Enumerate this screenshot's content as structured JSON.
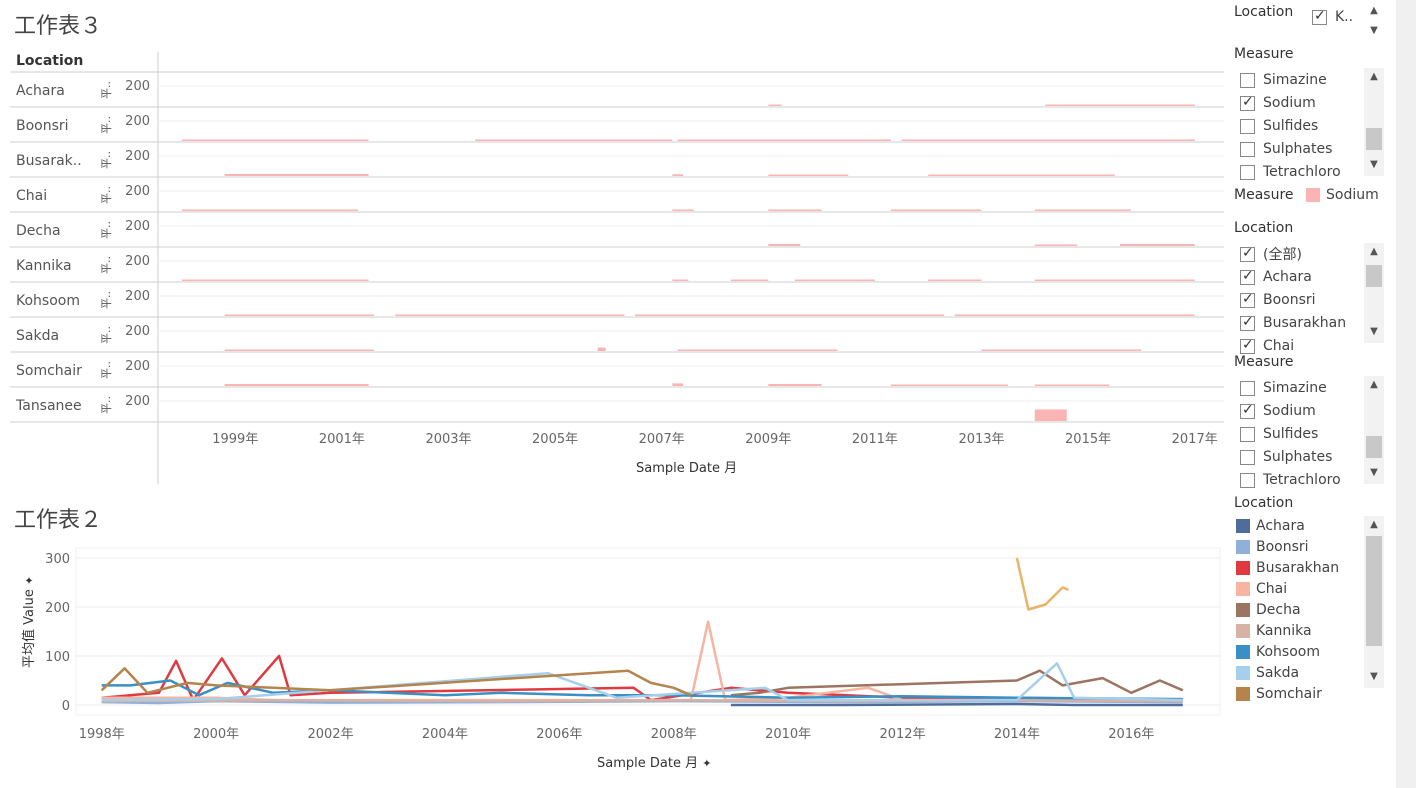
{
  "sheet3": {
    "title": "工作表３",
    "location_header": "Location",
    "rows": [
      "Achara",
      "Boonsri",
      "Busarak..",
      "Chai",
      "Decha",
      "Kannika",
      "Kohsoom",
      "Sakda",
      "Somchair",
      "Tansanee"
    ],
    "row_axis_label": "平..",
    "row_tick": "200",
    "x_ticks": [
      "1999年",
      "2001年",
      "2003年",
      "2005年",
      "2007年",
      "2009年",
      "2011年",
      "2013年",
      "2015年",
      "2017年"
    ],
    "x_title": "Sample Date 月",
    "fill_color": "#fbb4b4"
  },
  "sheet2": {
    "title": "工作表２",
    "y_title": "平均值 Value",
    "pin_icon": "pin-icon",
    "y_ticks": [
      "300",
      "200",
      "100",
      "0"
    ],
    "x_ticks": [
      "1998年",
      "2000年",
      "2002年",
      "2004年",
      "2006年",
      "2008年",
      "2010年",
      "2012年",
      "2014年",
      "2016年"
    ],
    "x_title": "Sample Date 月"
  },
  "right_panel": {
    "top_location": {
      "title": "Location",
      "item": "K..",
      "item2": "K..."
    },
    "measure_filter_1": {
      "title": "Measure",
      "items": [
        {
          "label": "Simazine",
          "checked": false
        },
        {
          "label": "Sodium",
          "checked": true
        },
        {
          "label": "Sulfides",
          "checked": false
        },
        {
          "label": "Sulphates",
          "checked": false
        },
        {
          "label": "Tetrachloro",
          "checked": false
        }
      ]
    },
    "measure_legend": {
      "title": "Measure",
      "item": "Sodium",
      "color": "#fbb4b4"
    },
    "location_filter": {
      "title": "Location",
      "items": [
        {
          "label": "(全部)",
          "checked": true
        },
        {
          "label": "Achara",
          "checked": true
        },
        {
          "label": "Boonsri",
          "checked": true
        },
        {
          "label": "Busarakhan",
          "checked": true
        },
        {
          "label": "Chai",
          "checked": true
        }
      ]
    },
    "measure_filter_2": {
      "title": "Measure",
      "items": [
        {
          "label": "Simazine",
          "checked": false
        },
        {
          "label": "Sodium",
          "checked": true
        },
        {
          "label": "Sulfides",
          "checked": false
        },
        {
          "label": "Sulphates",
          "checked": false
        },
        {
          "label": "Tetrachloro",
          "checked": false
        }
      ]
    },
    "location_legend": {
      "title": "Location",
      "items": [
        {
          "label": "Achara",
          "color": "#4e6d9a"
        },
        {
          "label": "Boonsri",
          "color": "#8fb0d8"
        },
        {
          "label": "Busarakhan",
          "color": "#e0393f"
        },
        {
          "label": "Chai",
          "color": "#f5b5a0"
        },
        {
          "label": "Decha",
          "color": "#9c7562"
        },
        {
          "label": "Kannika",
          "color": "#d8b2a4"
        },
        {
          "label": "Kohsoom",
          "color": "#3a8fc4"
        },
        {
          "label": "Sakda",
          "color": "#a6cfec"
        },
        {
          "label": "Somchair",
          "color": "#b5834c"
        }
      ]
    }
  },
  "chart_data": [
    {
      "type": "area",
      "title": "工作表３",
      "xlabel": "Sample Date 月",
      "ylabel": "平..",
      "x_range": [
        "1997-06",
        "2017-06"
      ],
      "rows": [
        "Achara",
        "Boonsri",
        "Busarak..",
        "Chai",
        "Decha",
        "Kannika",
        "Kohsoom",
        "Sakda",
        "Somchair",
        "Tansanee"
      ],
      "series": [
        {
          "row": "Achara",
          "segments": [
            [
              2009.0,
              2009.25,
              12
            ],
            [
              2014.2,
              2017.0,
              3
            ]
          ]
        },
        {
          "row": "Boonsri",
          "segments": [
            [
              1998.0,
              2001.5,
              12
            ],
            [
              2003.5,
              2007.2,
              12
            ],
            [
              2007.3,
              2011.3,
              12
            ],
            [
              2011.5,
              2017.0,
              12
            ]
          ]
        },
        {
          "row": "Busarak..",
          "segments": [
            [
              1998.8,
              2001.5,
              35
            ],
            [
              2007.2,
              2007.4,
              30
            ],
            [
              2009.0,
              2010.5,
              25
            ],
            [
              2012.0,
              2015.5,
              10
            ]
          ]
        },
        {
          "row": "Chai",
          "segments": [
            [
              1998.0,
              2001.3,
              15
            ],
            [
              2007.2,
              2007.6,
              8
            ],
            [
              2009.0,
              2010.0,
              15
            ],
            [
              2011.3,
              2013.0,
              8
            ],
            [
              2014.0,
              2015.8,
              8
            ]
          ]
        },
        {
          "row": "Decha",
          "segments": [
            [
              2009.0,
              2009.6,
              35
            ],
            [
              2014.0,
              2014.8,
              25
            ],
            [
              2015.6,
              2017.0,
              35
            ]
          ]
        },
        {
          "row": "Kannika",
          "segments": [
            [
              1998.0,
              2001.5,
              12
            ],
            [
              2007.2,
              2007.5,
              8
            ],
            [
              2008.3,
              2009.0,
              8
            ],
            [
              2009.5,
              2011.0,
              10
            ],
            [
              2012.0,
              2013.0,
              8
            ],
            [
              2014.0,
              2017.0,
              8
            ]
          ]
        },
        {
          "row": "Kohsoom",
          "segments": [
            [
              1998.8,
              2001.6,
              25
            ],
            [
              2002.0,
              2006.3,
              25
            ],
            [
              2006.5,
              2012.3,
              25
            ],
            [
              2012.5,
              2017.0,
              20
            ]
          ]
        },
        {
          "row": "Sakda",
          "segments": [
            [
              1998.8,
              2001.6,
              15
            ],
            [
              2005.8,
              2005.95,
              60
            ],
            [
              2007.3,
              2010.3,
              15
            ],
            [
              2013.0,
              2016.0,
              12
            ]
          ]
        },
        {
          "row": "Somchair",
          "segments": [
            [
              1998.8,
              2001.5,
              35
            ],
            [
              2007.2,
              2007.4,
              45
            ],
            [
              2009.0,
              2010.0,
              35
            ],
            [
              2011.3,
              2013.5,
              15
            ],
            [
              2014.0,
              2015.4,
              25
            ]
          ]
        },
        {
          "row": "Tansanee",
          "segments": [
            [
              2014.0,
              2014.6,
              200
            ]
          ]
        }
      ]
    },
    {
      "type": "line",
      "title": "工作表２",
      "xlabel": "Sample Date 月",
      "ylabel": "平均值 Value",
      "ylim": [
        0,
        300
      ],
      "x_range": [
        "1997-06",
        "2017-06"
      ],
      "series": [
        {
          "name": "Achara",
          "color": "#4e6d9a",
          "points": [
            [
              2009.0,
              0
            ],
            [
              2011.0,
              0
            ],
            [
              2014.0,
              2
            ],
            [
              2015.0,
              0
            ],
            [
              2016.9,
              0
            ]
          ]
        },
        {
          "name": "Boonsri",
          "color": "#8fb0d8",
          "points": [
            [
              1998.0,
              6
            ],
            [
              1999.0,
              4
            ],
            [
              2000.0,
              8
            ],
            [
              2002.0,
              5
            ],
            [
              2005.0,
              6
            ],
            [
              2008.0,
              8
            ],
            [
              2011.0,
              6
            ],
            [
              2014.0,
              8
            ],
            [
              2016.9,
              6
            ]
          ]
        },
        {
          "name": "Busarakhan",
          "color": "#e0393f",
          "points": [
            [
              1998.0,
              15
            ],
            [
              1999.0,
              25
            ],
            [
              1999.3,
              90
            ],
            [
              1999.6,
              10
            ],
            [
              2000.1,
              95
            ],
            [
              2000.5,
              20
            ],
            [
              2001.1,
              100
            ],
            [
              2001.3,
              20
            ],
            [
              2002.0,
              25
            ],
            [
              2007.3,
              35
            ],
            [
              2007.6,
              10
            ],
            [
              2009.0,
              35
            ],
            [
              2010.0,
              25
            ],
            [
              2012.0,
              15
            ],
            [
              2014.0,
              15
            ],
            [
              2016.9,
              10
            ]
          ]
        },
        {
          "name": "Chai",
          "color": "#f5b5a0",
          "points": [
            [
              1998.0,
              15
            ],
            [
              2000.0,
              15
            ],
            [
              2001.0,
              10
            ],
            [
              2007.5,
              10
            ],
            [
              2008.3,
              10
            ],
            [
              2008.6,
              170
            ],
            [
              2008.9,
              10
            ],
            [
              2010.0,
              15
            ],
            [
              2011.4,
              35
            ],
            [
              2012.0,
              10
            ],
            [
              2014.0,
              10
            ],
            [
              2016.0,
              12
            ]
          ]
        },
        {
          "name": "Decha",
          "color": "#9c7562",
          "points": [
            [
              2009.0,
              20
            ],
            [
              2009.5,
              25
            ],
            [
              2010.0,
              35
            ],
            [
              2014.0,
              50
            ],
            [
              2014.4,
              70
            ],
            [
              2014.8,
              40
            ],
            [
              2015.5,
              55
            ],
            [
              2016.0,
              25
            ],
            [
              2016.5,
              50
            ],
            [
              2016.9,
              30
            ]
          ]
        },
        {
          "name": "Kannika",
          "color": "#d8b2a4",
          "points": [
            [
              1998.0,
              8
            ],
            [
              2001.0,
              10
            ],
            [
              2005.0,
              8
            ],
            [
              2008.0,
              10
            ],
            [
              2011.0,
              8
            ],
            [
              2014.0,
              10
            ],
            [
              2016.9,
              8
            ]
          ]
        },
        {
          "name": "Kohsoom",
          "color": "#3a8fc4",
          "points": [
            [
              1998.0,
              40
            ],
            [
              1998.5,
              40
            ],
            [
              1999.2,
              50
            ],
            [
              1999.7,
              20
            ],
            [
              2000.2,
              45
            ],
            [
              2001.0,
              25
            ],
            [
              2002.0,
              30
            ],
            [
              2003.0,
              25
            ],
            [
              2004.0,
              20
            ],
            [
              2005.0,
              25
            ],
            [
              2006.5,
              20
            ],
            [
              2008.0,
              20
            ],
            [
              2010.0,
              15
            ],
            [
              2012.0,
              18
            ],
            [
              2014.0,
              15
            ],
            [
              2016.9,
              12
            ]
          ]
        },
        {
          "name": "Sakda",
          "color": "#a6cfec",
          "points": [
            [
              1998.0,
              10
            ],
            [
              2000.0,
              12
            ],
            [
              2005.8,
              65
            ],
            [
              2007.0,
              15
            ],
            [
              2009.6,
              35
            ],
            [
              2010.0,
              10
            ],
            [
              2014.0,
              10
            ],
            [
              2014.7,
              85
            ],
            [
              2015.0,
              15
            ],
            [
              2016.9,
              10
            ]
          ]
        },
        {
          "name": "Somchair",
          "color": "#b5834c",
          "points": [
            [
              1998.0,
              30
            ],
            [
              1998.4,
              75
            ],
            [
              1998.8,
              25
            ],
            [
              1999.5,
              45
            ],
            [
              2000.0,
              40
            ],
            [
              2001.0,
              35
            ],
            [
              2002.0,
              30
            ],
            [
              2007.2,
              70
            ],
            [
              2007.6,
              45
            ],
            [
              2008.0,
              35
            ],
            [
              2008.3,
              20
            ]
          ]
        },
        {
          "name": "Tansanee",
          "color": "#e8b46a",
          "points": [
            [
              2014.0,
              300
            ],
            [
              2014.2,
              195
            ],
            [
              2014.5,
              205
            ],
            [
              2014.8,
              240
            ],
            [
              2014.9,
              235
            ]
          ]
        }
      ]
    }
  ]
}
